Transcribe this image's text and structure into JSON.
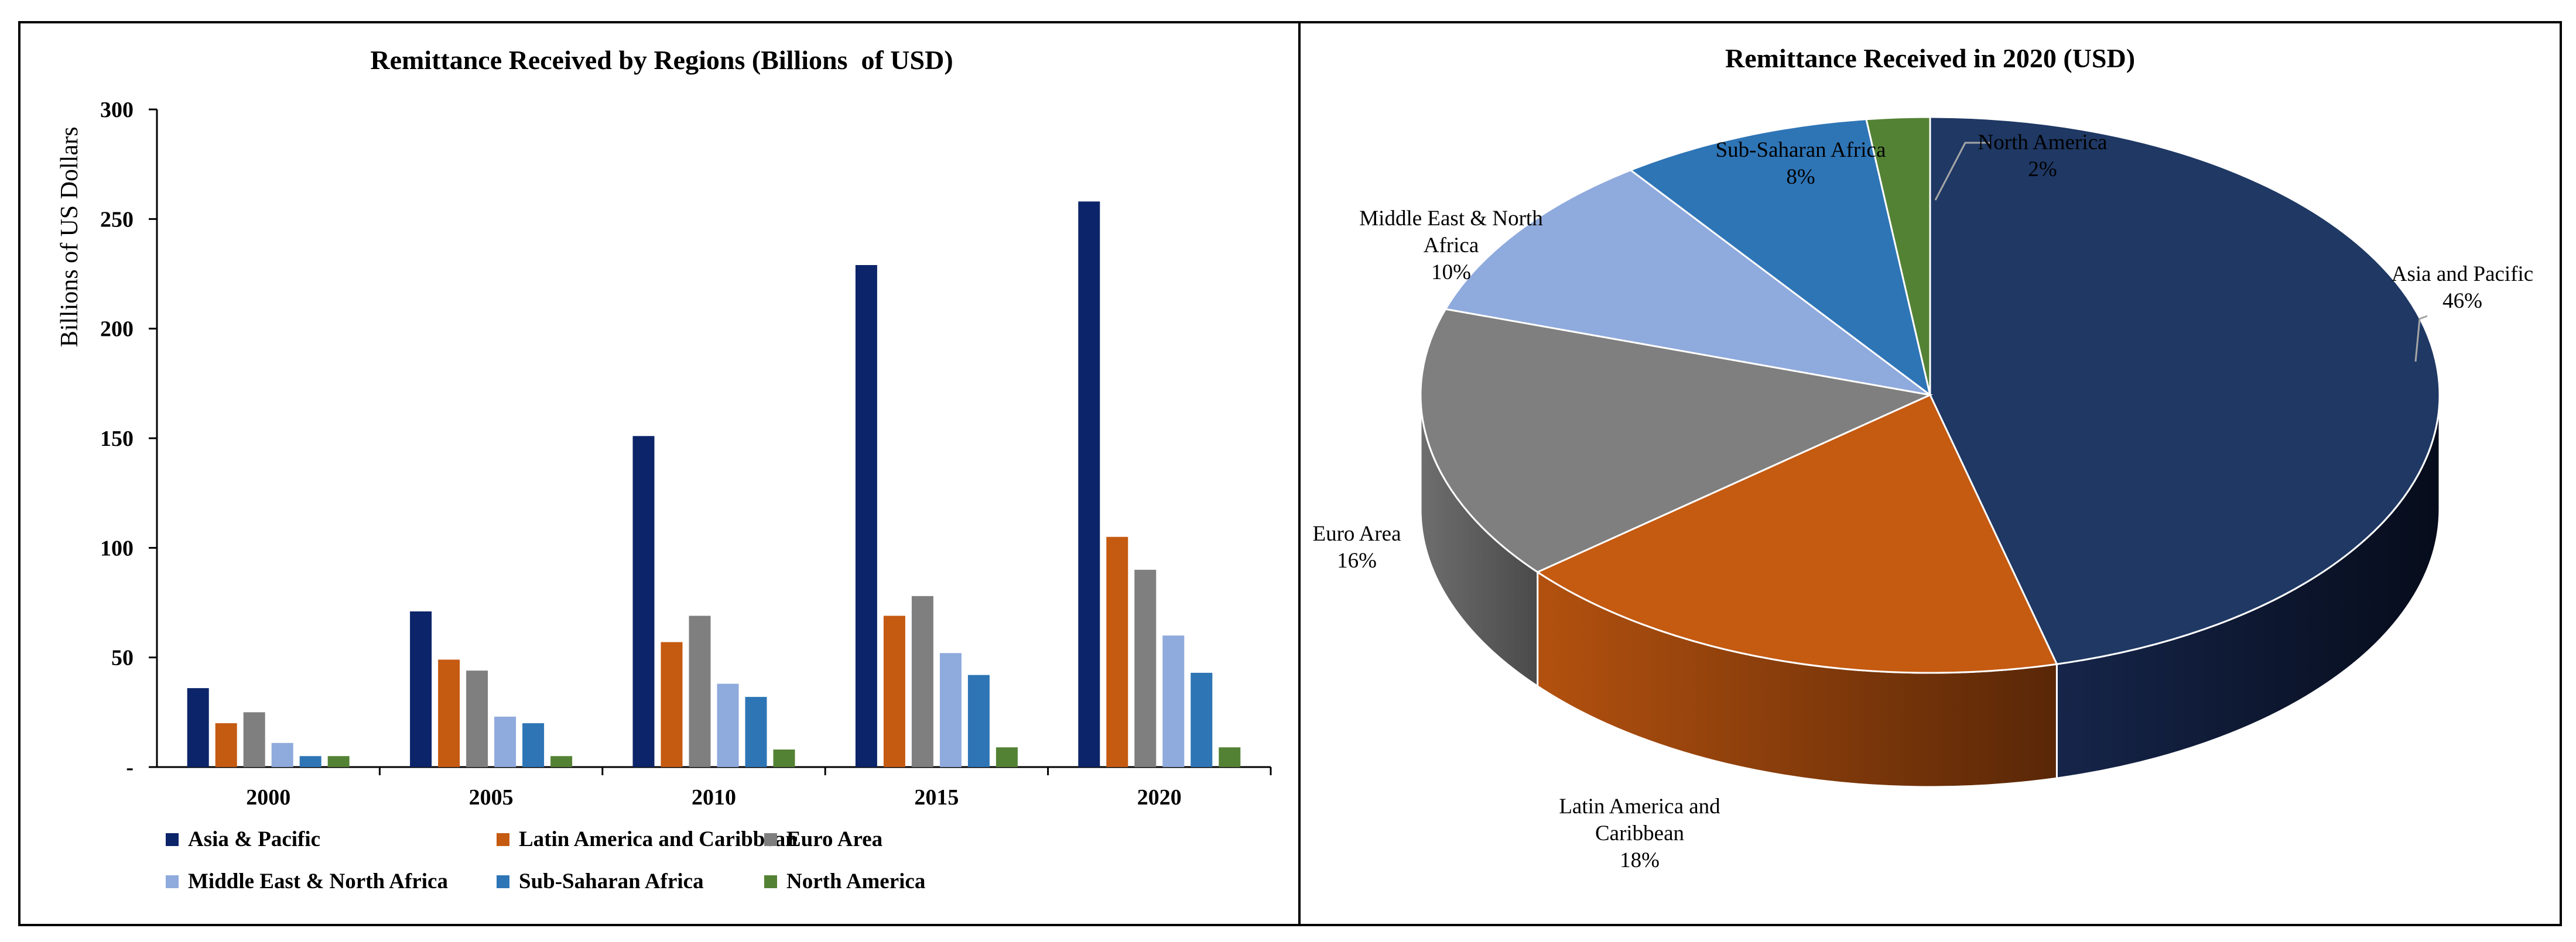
{
  "chart_data": [
    {
      "type": "bar",
      "title": "Remittance Received by Regions (Billions  of USD)",
      "xlabel": "",
      "ylabel": "Billions of US Dollars",
      "ylim": [
        0,
        300
      ],
      "yticks": [
        "-",
        "50",
        "100",
        "150",
        "200",
        "250",
        "300"
      ],
      "categories": [
        "2000",
        "2005",
        "2010",
        "2015",
        "2020"
      ],
      "series": [
        {
          "name": "Asia & Pacific",
          "color": "#0c2469",
          "values": [
            36,
            71,
            151,
            229,
            258
          ]
        },
        {
          "name": "Latin America and Caribbean",
          "color": "#c55a11",
          "values": [
            20,
            49,
            57,
            69,
            105
          ]
        },
        {
          "name": "Euro Area",
          "color": "#7f7f7f",
          "values": [
            25,
            44,
            69,
            78,
            90
          ]
        },
        {
          "name": "Middle East & North Africa",
          "color": "#8faadc",
          "values": [
            11,
            23,
            38,
            52,
            60
          ]
        },
        {
          "name": "Sub-Saharan Africa",
          "color": "#2e75b6",
          "values": [
            5,
            20,
            32,
            42,
            43
          ]
        },
        {
          "name": "North America",
          "color": "#548235",
          "values": [
            5,
            5,
            8,
            9,
            9
          ]
        }
      ],
      "legend_position": "bottom"
    },
    {
      "type": "pie",
      "title": "Remittance Received in 2020 (USD)",
      "slices": [
        {
          "name": "Asia and Pacific",
          "label_lines": [
            "Asia and Pacific",
            "46%"
          ],
          "value": 46,
          "color": "#1f3864"
        },
        {
          "name": "Latin America and Caribbean",
          "label_lines": [
            "Latin America and",
            "Caribbean",
            "18%"
          ],
          "value": 18,
          "color": "#c55a11"
        },
        {
          "name": "Euro Area",
          "label_lines": [
            "Euro Area",
            "16%"
          ],
          "value": 16,
          "color": "#7f7f7f"
        },
        {
          "name": "Middle East & North Africa",
          "label_lines": [
            "Middle East & North",
            "Africa",
            "10%"
          ],
          "value": 10,
          "color": "#8faadc"
        },
        {
          "name": "Sub-Saharan Africa",
          "label_lines": [
            "Sub-Saharan Africa",
            "8%"
          ],
          "value": 8,
          "color": "#2e75b6"
        },
        {
          "name": "North America",
          "label_lines": [
            "North America",
            "2%"
          ],
          "value": 2,
          "color": "#548235"
        }
      ]
    }
  ]
}
